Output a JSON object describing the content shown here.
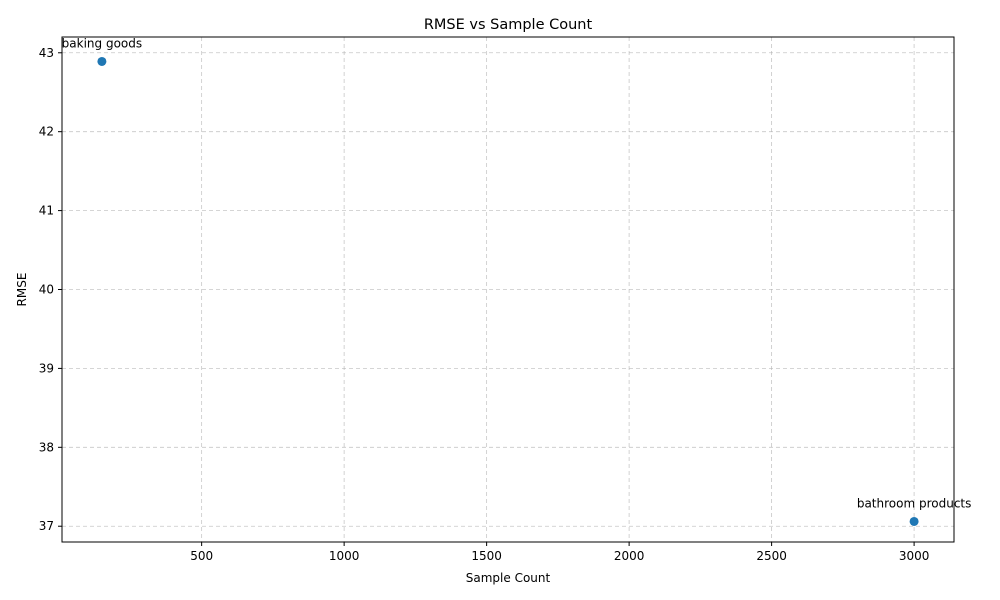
{
  "chart_data": {
    "type": "scatter",
    "title": "RMSE vs Sample Count",
    "xlabel": "Sample Count",
    "ylabel": "RMSE",
    "xlim": [
      10,
      3140
    ],
    "ylim": [
      36.8,
      43.2
    ],
    "xticks": [
      500,
      1000,
      1500,
      2000,
      2500,
      3000
    ],
    "yticks": [
      37,
      38,
      39,
      40,
      41,
      42,
      43
    ],
    "grid": true,
    "points": [
      {
        "label": "baking goods",
        "x": 150,
        "y": 42.89
      },
      {
        "label": "bathroom products",
        "x": 3000,
        "y": 37.06
      }
    ],
    "marker_color": "#1f77b4"
  }
}
